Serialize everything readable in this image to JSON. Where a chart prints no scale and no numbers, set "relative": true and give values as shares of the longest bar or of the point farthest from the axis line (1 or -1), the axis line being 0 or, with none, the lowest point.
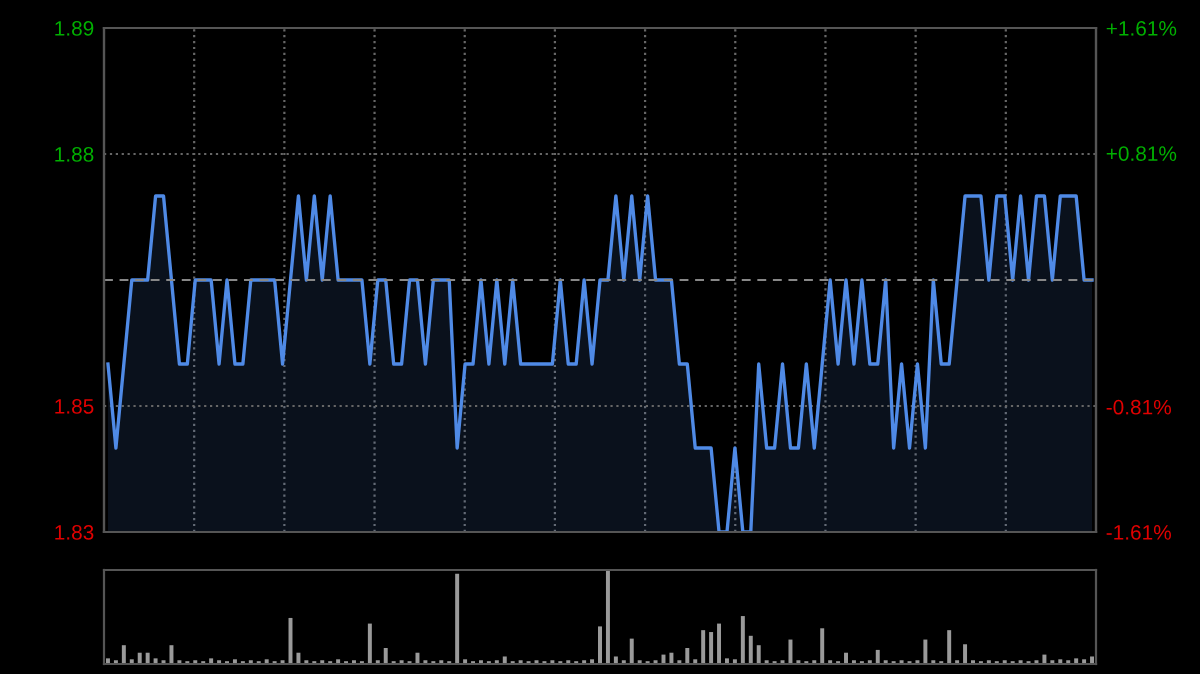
{
  "chart_data": [
    {
      "type": "area",
      "categories": [
        null,
        null,
        null,
        null,
        null,
        null,
        null,
        null,
        null,
        null,
        null,
        null,
        null,
        null,
        null,
        null,
        null,
        null,
        null,
        null,
        null,
        null,
        null,
        null,
        null,
        null,
        null,
        null,
        null,
        null,
        null,
        null,
        null,
        null,
        null,
        null,
        null,
        null,
        null,
        null,
        null,
        null,
        null,
        null,
        null,
        null,
        null,
        null,
        null,
        null,
        null,
        null,
        null,
        null,
        null,
        null,
        null,
        null,
        null,
        null,
        null,
        null,
        null,
        null,
        null,
        null,
        null,
        null,
        null,
        null,
        null,
        null,
        null,
        null,
        null,
        null,
        null,
        null,
        null,
        null,
        null,
        null,
        null,
        null,
        null,
        null,
        null,
        null,
        null,
        null,
        null,
        null,
        null,
        null,
        null,
        null,
        null,
        null,
        null,
        null,
        null,
        null,
        null,
        null,
        null,
        null,
        null,
        null,
        null,
        null,
        null,
        null,
        null,
        null,
        null,
        null,
        null,
        null,
        null,
        null,
        null,
        null,
        null,
        null,
        null
      ],
      "series": [
        {
          "color": "#4f8ae6",
          "values": [
            1.85,
            1.84,
            1.85,
            1.86,
            1.86,
            1.86,
            1.87,
            1.87,
            1.86,
            1.85,
            1.85,
            1.86,
            1.86,
            1.86,
            1.85,
            1.86,
            1.85,
            1.85,
            1.86,
            1.86,
            1.86,
            1.86,
            1.85,
            1.86,
            1.87,
            1.86,
            1.87,
            1.86,
            1.87,
            1.86,
            1.86,
            1.86,
            1.86,
            1.85,
            1.86,
            1.86,
            1.85,
            1.85,
            1.86,
            1.86,
            1.85,
            1.86,
            1.86,
            1.86,
            1.84,
            1.85,
            1.85,
            1.86,
            1.85,
            1.86,
            1.85,
            1.86,
            1.85,
            1.85,
            1.85,
            1.85,
            1.85,
            1.86,
            1.85,
            1.85,
            1.86,
            1.85,
            1.86,
            1.86,
            1.87,
            1.86,
            1.87,
            1.86,
            1.87,
            1.86,
            1.86,
            1.86,
            1.85,
            1.85,
            1.84,
            1.84,
            1.84,
            1.83,
            1.83,
            1.84,
            1.83,
            1.83,
            1.85,
            1.84,
            1.84,
            1.85,
            1.84,
            1.84,
            1.85,
            1.84,
            1.85,
            1.86,
            1.85,
            1.86,
            1.85,
            1.86,
            1.85,
            1.85,
            1.86,
            1.84,
            1.85,
            1.84,
            1.85,
            1.84,
            1.86,
            1.85,
            1.85,
            1.86,
            1.87,
            1.87,
            1.87,
            1.86,
            1.87,
            1.87,
            1.86,
            1.87,
            1.86,
            1.87,
            1.87,
            1.86,
            1.87,
            1.87,
            1.87,
            1.86,
            1.86
          ]
        }
      ],
      "ylim": [
        1.83,
        1.89
      ],
      "yticks": [
        {
          "value": 1.83,
          "label": "1.83"
        },
        {
          "value": 1.845,
          "label": "1.85"
        },
        {
          "value": 1.875,
          "label": "1.88"
        },
        {
          "value": 1.89,
          "label": "1.89"
        }
      ],
      "y2lim": [
        -1.61,
        1.61
      ],
      "y2ticks": [
        {
          "value": -1.61,
          "label": "-1.61%"
        },
        {
          "value": -0.81,
          "label": "-0.81%"
        },
        {
          "value": 0.81,
          "label": "+0.81%"
        },
        {
          "value": 1.61,
          "label": "+1.61%"
        }
      ],
      "ref_lines": [
        {
          "axis": "y",
          "value": 1.86,
          "color": "#888888",
          "line_style": "dashed"
        }
      ],
      "grid": true,
      "tick_labels": "y"
    },
    {
      "type": "bar",
      "relative": true,
      "grid": false,
      "tick_labels": false,
      "categories": [
        null,
        null,
        null,
        null,
        null,
        null,
        null,
        null,
        null,
        null,
        null,
        null,
        null,
        null,
        null,
        null,
        null,
        null,
        null,
        null,
        null,
        null,
        null,
        null,
        null,
        null,
        null,
        null,
        null,
        null,
        null,
        null,
        null,
        null,
        null,
        null,
        null,
        null,
        null,
        null,
        null,
        null,
        null,
        null,
        null,
        null,
        null,
        null,
        null,
        null,
        null,
        null,
        null,
        null,
        null,
        null,
        null,
        null,
        null,
        null,
        null,
        null,
        null,
        null,
        null,
        null,
        null,
        null,
        null,
        null,
        null,
        null,
        null,
        null,
        null,
        null,
        null,
        null,
        null,
        null,
        null,
        null,
        null,
        null,
        null,
        null,
        null,
        null,
        null,
        null,
        null,
        null,
        null,
        null,
        null,
        null,
        null,
        null,
        null,
        null,
        null,
        null,
        null,
        null,
        null,
        null,
        null,
        null,
        null,
        null,
        null,
        null,
        null,
        null,
        null,
        null,
        null,
        null,
        null,
        null,
        null,
        null,
        null,
        null,
        null
      ],
      "series": [
        {
          "color": "#9a9a9a",
          "values": [
            0.06,
            0.04,
            0.2,
            0.05,
            0.12,
            0.12,
            0.06,
            0.04,
            0.2,
            0.04,
            0.03,
            0.04,
            0.03,
            0.06,
            0.04,
            0.03,
            0.05,
            0.03,
            0.04,
            0.03,
            0.05,
            0.03,
            0.04,
            0.49,
            0.12,
            0.04,
            0.03,
            0.04,
            0.03,
            0.05,
            0.03,
            0.04,
            0.03,
            0.43,
            0.04,
            0.17,
            0.03,
            0.04,
            0.03,
            0.12,
            0.04,
            0.03,
            0.04,
            0.03,
            0.96,
            0.05,
            0.03,
            0.04,
            0.03,
            0.04,
            0.08,
            0.03,
            0.04,
            0.03,
            0.04,
            0.03,
            0.04,
            0.03,
            0.04,
            0.03,
            0.04,
            0.05,
            0.4,
            1.0,
            0.08,
            0.04,
            0.27,
            0.04,
            0.03,
            0.04,
            0.1,
            0.12,
            0.04,
            0.17,
            0.05,
            0.36,
            0.34,
            0.43,
            0.06,
            0.05,
            0.51,
            0.3,
            0.2,
            0.04,
            0.03,
            0.04,
            0.26,
            0.04,
            0.03,
            0.04,
            0.38,
            0.04,
            0.03,
            0.12,
            0.04,
            0.03,
            0.04,
            0.15,
            0.04,
            0.03,
            0.04,
            0.03,
            0.04,
            0.26,
            0.04,
            0.03,
            0.36,
            0.04,
            0.21,
            0.04,
            0.03,
            0.04,
            0.03,
            0.04,
            0.03,
            0.04,
            0.03,
            0.04,
            0.1,
            0.04,
            0.05,
            0.04,
            0.06,
            0.05,
            0.08
          ]
        }
      ]
    }
  ]
}
